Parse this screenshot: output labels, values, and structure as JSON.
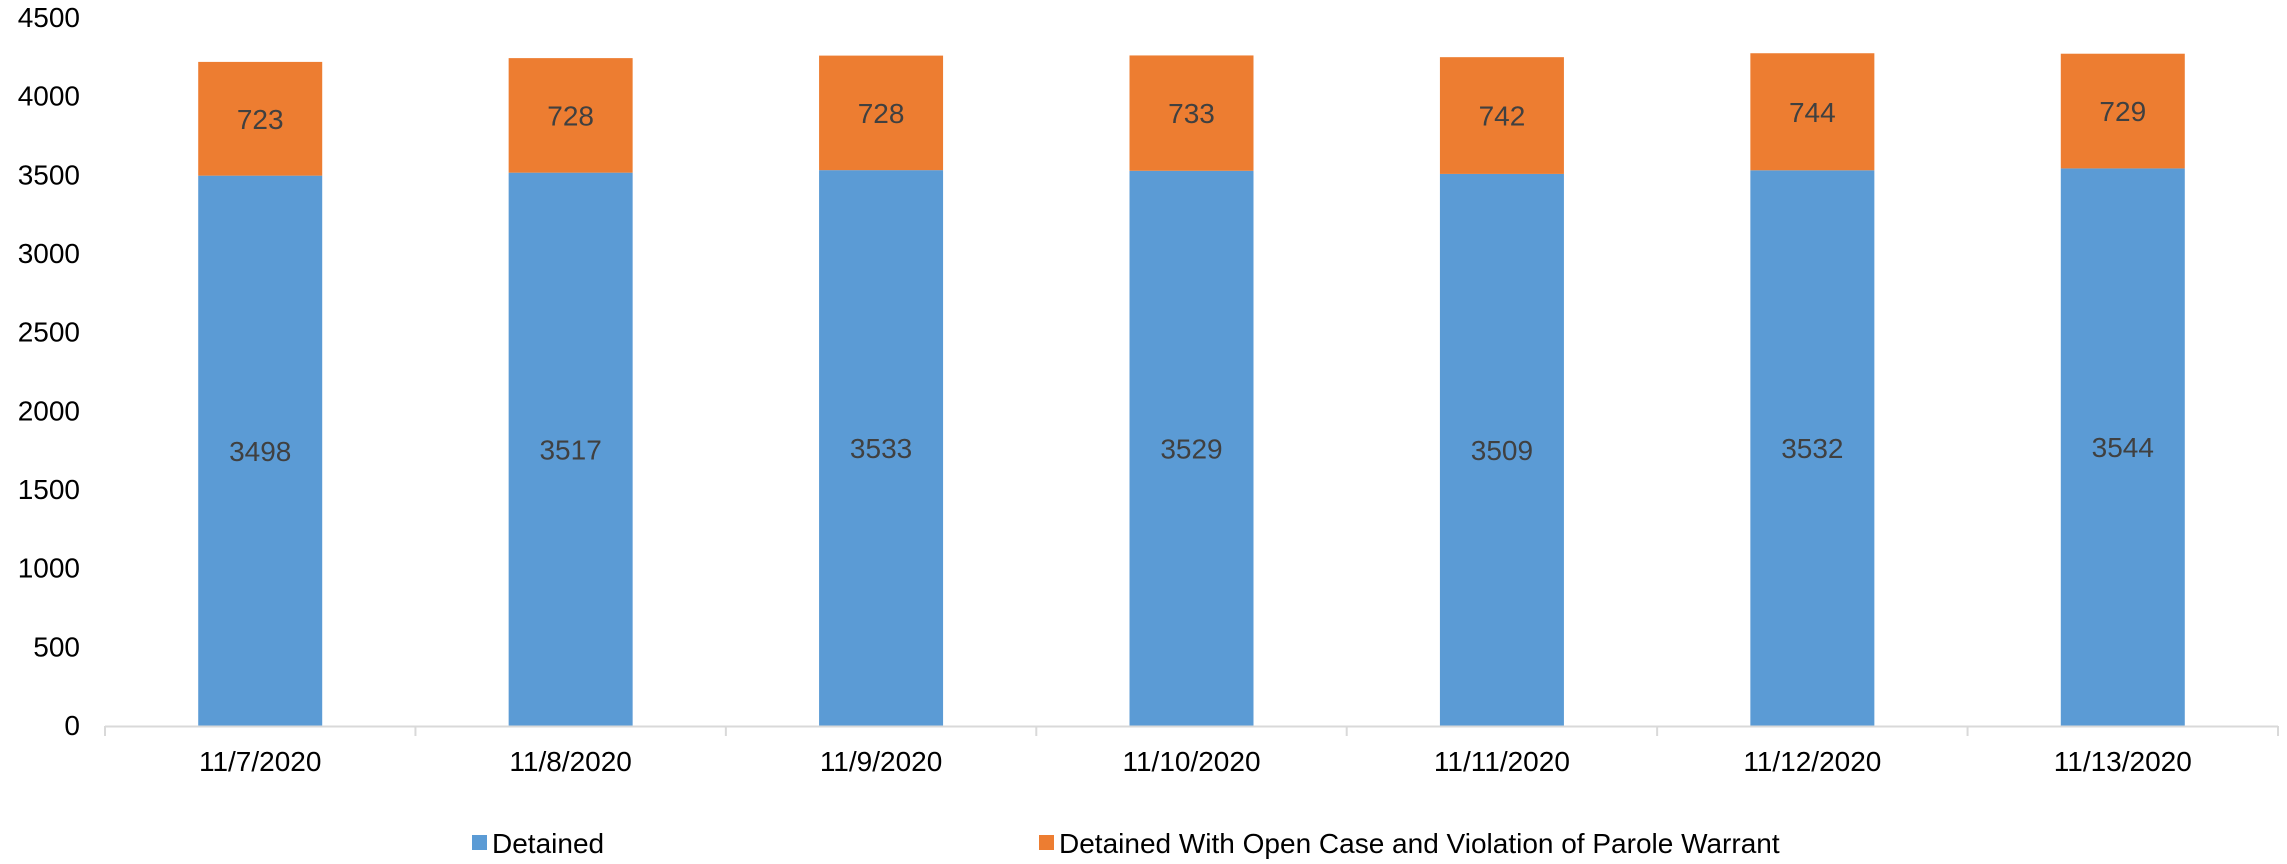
{
  "chart_data": {
    "type": "bar",
    "stacked": true,
    "categories": [
      "11/7/2020",
      "11/8/2020",
      "11/9/2020",
      "11/10/2020",
      "11/11/2020",
      "11/12/2020",
      "11/13/2020"
    ],
    "series": [
      {
        "name": "Detained",
        "color": "#5B9BD5",
        "values": [
          3498,
          3517,
          3533,
          3529,
          3509,
          3532,
          3544
        ]
      },
      {
        "name": "Detained With Open Case and Violation of Parole Warrant",
        "color": "#ED7D31",
        "values": [
          723,
          728,
          728,
          733,
          742,
          744,
          729
        ]
      }
    ],
    "ylim": [
      0,
      4500
    ],
    "yticks": [
      0,
      500,
      1000,
      1500,
      2000,
      2500,
      3000,
      3500,
      4000,
      4500
    ],
    "title": "",
    "xlabel": "",
    "ylabel": "",
    "grid": false,
    "data_labels": true,
    "legend_position": "bottom"
  }
}
